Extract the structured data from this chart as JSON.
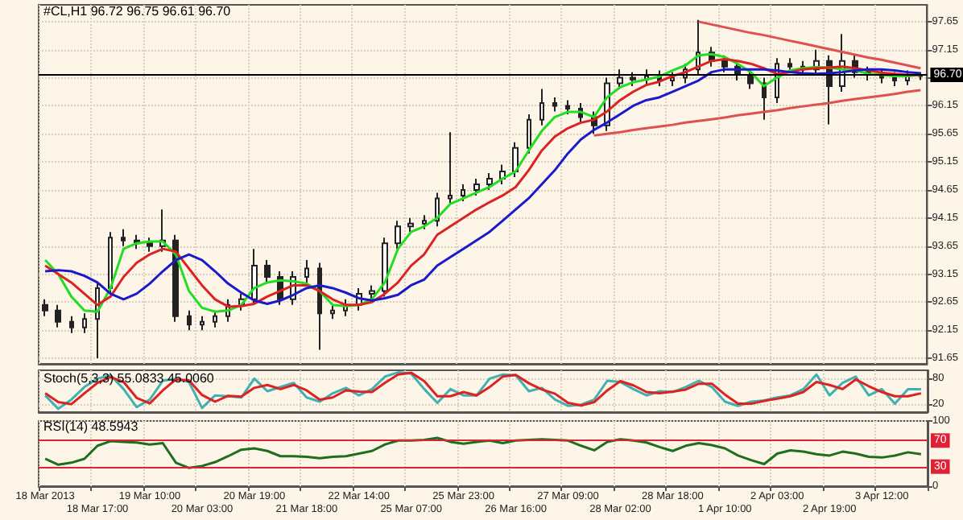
{
  "chart_data": [
    {
      "type": "candlestick",
      "title": "#CL,H1 96.72 96.75 96.61 96.70",
      "categories": [
        null,
        null,
        null,
        null,
        null,
        null,
        null,
        null,
        null,
        null,
        null,
        null,
        null,
        null,
        null,
        null,
        null,
        null,
        null,
        null,
        null,
        null,
        null,
        null,
        null,
        null,
        null,
        null,
        null,
        null,
        null,
        null,
        null,
        null,
        null,
        null,
        null,
        null,
        null,
        null,
        null,
        null,
        null,
        null,
        null,
        null,
        null,
        null,
        null,
        null,
        null,
        null,
        null,
        null,
        null,
        null,
        null,
        null,
        null,
        null,
        null,
        null,
        null,
        null,
        null,
        null,
        null,
        null
      ],
      "ohlc": [
        [
          92.6,
          92.7,
          92.4,
          92.5
        ],
        [
          92.5,
          92.6,
          92.2,
          92.3
        ],
        [
          92.3,
          92.4,
          92.1,
          92.2
        ],
        [
          92.2,
          92.45,
          92.1,
          92.35
        ],
        [
          92.35,
          93.0,
          91.65,
          92.9
        ],
        [
          92.9,
          93.9,
          92.8,
          93.8
        ],
        [
          93.8,
          93.95,
          93.65,
          93.75
        ],
        [
          93.75,
          93.85,
          93.6,
          93.7
        ],
        [
          93.7,
          93.8,
          93.55,
          93.65
        ],
        [
          93.65,
          94.3,
          93.55,
          93.75
        ],
        [
          93.75,
          93.85,
          92.3,
          92.4
        ],
        [
          92.4,
          92.5,
          92.15,
          92.25
        ],
        [
          92.25,
          92.4,
          92.15,
          92.3
        ],
        [
          92.3,
          92.5,
          92.2,
          92.4
        ],
        [
          92.4,
          92.7,
          92.3,
          92.6
        ],
        [
          92.6,
          92.8,
          92.5,
          92.7
        ],
        [
          92.7,
          93.6,
          92.6,
          93.3
        ],
        [
          93.3,
          93.4,
          93.0,
          93.1
        ],
        [
          93.1,
          93.2,
          92.6,
          92.7
        ],
        [
          92.7,
          93.2,
          92.6,
          93.1
        ],
        [
          93.1,
          93.4,
          93.0,
          93.25
        ],
        [
          93.25,
          93.35,
          91.8,
          92.45
        ],
        [
          92.45,
          92.6,
          92.35,
          92.5
        ],
        [
          92.5,
          92.7,
          92.4,
          92.6
        ],
        [
          92.6,
          92.9,
          92.5,
          92.8
        ],
        [
          92.8,
          92.95,
          92.7,
          92.85
        ],
        [
          92.85,
          93.8,
          92.75,
          93.7
        ],
        [
          93.7,
          94.1,
          93.6,
          94.0
        ],
        [
          94.0,
          94.15,
          93.9,
          94.05
        ],
        [
          94.05,
          94.2,
          93.95,
          94.1
        ],
        [
          94.1,
          94.6,
          94.0,
          94.5
        ],
        [
          94.5,
          95.68,
          94.4,
          94.55
        ],
        [
          94.55,
          94.75,
          94.45,
          94.65
        ],
        [
          94.65,
          94.85,
          94.55,
          94.75
        ],
        [
          94.75,
          94.95,
          94.65,
          94.85
        ],
        [
          94.85,
          95.1,
          94.75,
          94.98
        ],
        [
          94.98,
          95.5,
          94.88,
          95.4
        ],
        [
          95.4,
          96.0,
          95.3,
          95.9
        ],
        [
          95.9,
          96.45,
          95.8,
          96.2
        ],
        [
          96.2,
          96.3,
          96.05,
          96.15
        ],
        [
          96.15,
          96.25,
          96.0,
          96.1
        ],
        [
          96.1,
          96.2,
          95.85,
          95.95
        ],
        [
          95.95,
          96.05,
          95.65,
          95.8
        ],
        [
          95.8,
          96.65,
          95.7,
          96.55
        ],
        [
          96.55,
          96.8,
          96.45,
          96.65
        ],
        [
          96.65,
          96.75,
          96.5,
          96.62
        ],
        [
          96.62,
          96.8,
          96.52,
          96.68
        ],
        [
          96.68,
          96.78,
          96.5,
          96.6
        ],
        [
          96.6,
          96.75,
          96.5,
          96.65
        ],
        [
          96.65,
          96.9,
          96.55,
          96.8
        ],
        [
          96.8,
          97.68,
          96.7,
          97.1
        ],
        [
          97.1,
          97.2,
          96.85,
          96.95
        ],
        [
          96.95,
          97.05,
          96.75,
          96.85
        ],
        [
          96.85,
          96.95,
          96.6,
          96.7
        ],
        [
          96.7,
          96.8,
          96.45,
          96.55
        ],
        [
          96.55,
          96.65,
          95.9,
          96.3
        ],
        [
          96.3,
          97.0,
          96.2,
          96.9
        ],
        [
          96.9,
          97.0,
          96.75,
          96.85
        ],
        [
          96.85,
          96.95,
          96.7,
          96.8
        ],
        [
          96.8,
          97.15,
          96.7,
          96.95
        ],
        [
          96.95,
          97.05,
          95.82,
          96.5
        ],
        [
          96.5,
          97.43,
          96.4,
          96.95
        ],
        [
          96.95,
          97.05,
          96.65,
          96.75
        ],
        [
          96.75,
          96.85,
          96.6,
          96.7
        ],
        [
          96.7,
          96.8,
          96.55,
          96.65
        ],
        [
          96.65,
          96.75,
          96.5,
          96.6
        ],
        [
          96.6,
          96.78,
          96.52,
          96.68
        ],
        [
          96.68,
          96.75,
          96.61,
          96.7
        ]
      ],
      "series": [
        {
          "type": "line",
          "color": "#22dd22",
          "values": [
            93.4,
            93.15,
            92.75,
            92.5,
            92.48,
            92.9,
            93.6,
            93.7,
            93.73,
            93.73,
            93.5,
            92.85,
            92.55,
            92.48,
            92.5,
            92.6,
            92.9,
            93.0,
            93.04,
            93.02,
            92.98,
            92.85,
            92.6,
            92.58,
            92.6,
            92.7,
            93.0,
            93.6,
            93.9,
            94.0,
            94.15,
            94.4,
            94.5,
            94.6,
            94.7,
            94.85,
            94.98,
            95.35,
            95.7,
            95.95,
            96.04,
            96.04,
            95.95,
            96.3,
            96.48,
            96.57,
            96.62,
            96.67,
            96.78,
            96.87,
            97.05,
            97.07,
            97.02,
            96.9,
            96.75,
            96.5,
            96.65,
            96.78,
            96.82,
            96.84,
            96.83,
            96.8,
            96.78,
            96.72,
            96.7,
            96.68,
            96.68,
            96.7
          ]
        },
        {
          "type": "line",
          "color": "#dd2222",
          "values": [
            93.3,
            93.15,
            93.0,
            92.8,
            92.6,
            92.75,
            93.1,
            93.35,
            93.5,
            93.6,
            93.55,
            93.25,
            92.95,
            92.7,
            92.57,
            92.58,
            92.62,
            92.75,
            92.85,
            92.95,
            92.95,
            92.85,
            92.7,
            92.6,
            92.6,
            92.65,
            92.8,
            93.0,
            93.3,
            93.5,
            93.85,
            94.0,
            94.15,
            94.3,
            94.43,
            94.55,
            94.7,
            95.0,
            95.35,
            95.6,
            95.75,
            95.85,
            95.9,
            96.05,
            96.25,
            96.4,
            96.52,
            96.58,
            96.68,
            96.75,
            96.85,
            96.95,
            96.98,
            96.95,
            96.9,
            96.82,
            96.72,
            96.75,
            96.8,
            96.82,
            96.83,
            96.85,
            96.82,
            96.78,
            96.74,
            96.72,
            96.7,
            96.7
          ]
        },
        {
          "type": "line",
          "color": "#1a1acc",
          "values": [
            93.2,
            93.22,
            93.2,
            93.12,
            93.0,
            92.8,
            92.7,
            92.8,
            92.98,
            93.2,
            93.4,
            93.5,
            93.4,
            93.2,
            92.98,
            92.82,
            92.68,
            92.62,
            92.68,
            92.78,
            92.9,
            92.95,
            92.9,
            92.82,
            92.72,
            92.68,
            92.72,
            92.78,
            92.95,
            93.05,
            93.3,
            93.45,
            93.6,
            93.75,
            93.9,
            94.1,
            94.3,
            94.5,
            94.75,
            95.0,
            95.3,
            95.55,
            95.72,
            95.85,
            96.0,
            96.15,
            96.25,
            96.3,
            96.4,
            96.5,
            96.6,
            96.75,
            96.8,
            96.8,
            96.8,
            96.8,
            96.78,
            96.75,
            96.73,
            96.72,
            96.73,
            96.75,
            96.78,
            96.8,
            96.8,
            96.78,
            96.75,
            96.73
          ]
        },
        {
          "type": "line",
          "color": "#e05050",
          "values": [
            null,
            null,
            null,
            null,
            null,
            null,
            null,
            null,
            null,
            null,
            null,
            null,
            null,
            null,
            null,
            null,
            null,
            null,
            null,
            null,
            null,
            null,
            null,
            null,
            null,
            null,
            null,
            null,
            null,
            null,
            null,
            null,
            null,
            null,
            null,
            null,
            null,
            null,
            null,
            null,
            null,
            null,
            null,
            null,
            null,
            null,
            null,
            null,
            null,
            null,
            97.65,
            97.6,
            97.55,
            97.5,
            97.45,
            97.41,
            97.36,
            97.31,
            97.26,
            97.21,
            97.16,
            97.11,
            97.06,
            97.01,
            96.97,
            96.92,
            96.87,
            96.82
          ]
        },
        {
          "type": "line",
          "color": "#e05050",
          "values": [
            null,
            null,
            null,
            null,
            null,
            null,
            null,
            null,
            null,
            null,
            null,
            null,
            null,
            null,
            null,
            null,
            null,
            null,
            null,
            null,
            null,
            null,
            null,
            null,
            null,
            null,
            null,
            null,
            null,
            null,
            null,
            null,
            null,
            null,
            null,
            null,
            null,
            null,
            null,
            null,
            null,
            null,
            95.62,
            95.65,
            95.68,
            95.72,
            95.75,
            95.78,
            95.81,
            95.85,
            95.88,
            95.91,
            95.94,
            95.98,
            96.01,
            96.04,
            96.07,
            96.11,
            96.14,
            96.17,
            96.2,
            96.24,
            96.27,
            96.3,
            96.33,
            96.36,
            96.4,
            96.43
          ]
        }
      ],
      "ylim": [
        91.55,
        97.95
      ],
      "yticks": [
        91.65,
        92.15,
        92.65,
        93.15,
        93.65,
        94.15,
        94.65,
        95.15,
        95.65,
        96.15,
        {
          "value": 96.65,
          "label": null
        },
        97.15,
        97.65
      ],
      "ref_lines": [
        {
          "axis": "y",
          "value": 96.7,
          "label": "96.70",
          "color": "#000000"
        }
      ],
      "grid": true,
      "tick_labels": "y"
    },
    {
      "type": "line",
      "title": "Stoch(5,3,3) 55.0833 45.0060",
      "categories": [
        null,
        null,
        null,
        null,
        null,
        null,
        null,
        null,
        null,
        null,
        null,
        null,
        null,
        null,
        null,
        null,
        null,
        null,
        null,
        null,
        null,
        null,
        null,
        null,
        null,
        null,
        null,
        null,
        null,
        null,
        null,
        null,
        null,
        null,
        null,
        null,
        null,
        null,
        null,
        null,
        null,
        null,
        null,
        null,
        null,
        null,
        null,
        null,
        null,
        null,
        null,
        null,
        null,
        null,
        null,
        null,
        null,
        null,
        null,
        null,
        null,
        null,
        null,
        null,
        null,
        null,
        null,
        null
      ],
      "series": [
        {
          "color": "#40b0b0",
          "values": [
            40,
            8,
            30,
            60,
            80,
            88,
            55,
            12,
            30,
            75,
            80,
            72,
            10,
            40,
            38,
            35,
            80,
            50,
            60,
            70,
            35,
            25,
            45,
            58,
            40,
            55,
            85,
            95,
            92,
            55,
            22,
            55,
            40,
            40,
            80,
            90,
            88,
            50,
            58,
            30,
            15,
            18,
            30,
            75,
            72,
            55,
            40,
            50,
            48,
            60,
            75,
            60,
            25,
            15,
            25,
            28,
            35,
            40,
            55,
            90,
            40,
            70,
            85,
            40,
            55,
            20,
            55,
            55
          ]
        },
        {
          "color": "#dd2222",
          "values": [
            45,
            24,
            19,
            45,
            70,
            84,
            72,
            34,
            21,
            52,
            78,
            76,
            41,
            25,
            39,
            37,
            58,
            65,
            55,
            65,
            52,
            30,
            35,
            52,
            49,
            48,
            70,
            90,
            94,
            74,
            38,
            38,
            48,
            40,
            60,
            85,
            89,
            69,
            54,
            44,
            22,
            16,
            24,
            52,
            74,
            64,
            48,
            45,
            49,
            54,
            68,
            68,
            42,
            20,
            20,
            27,
            32,
            38,
            48,
            72,
            65,
            55,
            78,
            62,
            48,
            38,
            38,
            45
          ]
        }
      ],
      "ylim": [
        0,
        100
      ],
      "yticks": [
        20,
        80
      ],
      "grid": true,
      "tick_labels": "y"
    },
    {
      "type": "line",
      "title": "RSI(14) 48.5943",
      "categories": [
        "18 Mar 2013",
        null,
        null,
        null,
        "18 Mar 17:00",
        null,
        null,
        null,
        "19 Mar 10:00",
        null,
        null,
        null,
        "20 Mar 03:00",
        null,
        null,
        null,
        "20 Mar 19:00",
        null,
        null,
        null,
        "21 Mar 18:00",
        null,
        null,
        null,
        "22 Mar 14:00",
        null,
        null,
        null,
        "25 Mar 07:00",
        null,
        null,
        null,
        "25 Mar 23:00",
        null,
        null,
        null,
        "26 Mar 16:00",
        null,
        null,
        null,
        "27 Mar 09:00",
        null,
        null,
        null,
        "28 Mar 02:00",
        null,
        null,
        null,
        "28 Mar 18:00",
        null,
        null,
        null,
        "1 Apr 10:00",
        null,
        null,
        null,
        "2 Apr 03:00",
        null,
        null,
        null,
        "2 Apr 19:00",
        null,
        null,
        null,
        "3 Apr 12:00",
        null,
        null,
        null
      ],
      "series": [
        {
          "color": "#1e6e1e",
          "values": [
            42,
            33,
            36,
            42,
            62,
            69,
            68,
            67,
            64,
            66,
            36,
            28,
            31,
            37,
            46,
            56,
            58,
            54,
            46,
            46,
            45,
            43,
            45,
            46,
            50,
            54,
            64,
            70,
            70,
            71,
            74,
            68,
            65,
            68,
            70,
            66,
            70,
            71,
            72,
            71,
            70,
            62,
            55,
            68,
            72,
            70,
            67,
            60,
            54,
            62,
            66,
            63,
            58,
            47,
            40,
            34,
            50,
            55,
            53,
            49,
            47,
            53,
            50,
            45,
            44,
            47,
            52,
            49
          ]
        }
      ],
      "ylim": [
        0,
        100
      ],
      "yticks": [
        0,
        100
      ],
      "ref_lines": [
        {
          "axis": "y",
          "value": 70,
          "label": "70",
          "color": "#dd2233"
        },
        {
          "axis": "y",
          "value": 30,
          "label": "30",
          "color": "#dd2233"
        }
      ],
      "grid": true
    }
  ]
}
